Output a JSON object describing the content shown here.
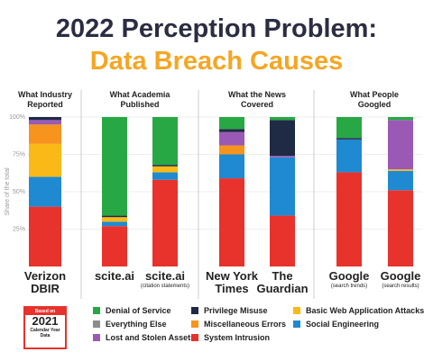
{
  "chart_data": {
    "type": "stacked_bar",
    "title": "2022 Perception Problem:",
    "subtitle": "Data Breach Causes",
    "ylabel": "Share of the total",
    "ylim": [
      0,
      100
    ],
    "yticks": [
      {
        "value": 25,
        "label": "25%"
      },
      {
        "value": 50,
        "label": "50%"
      },
      {
        "value": 75,
        "label": "75%"
      },
      {
        "value": 100,
        "label": "100%"
      }
    ],
    "grid": true,
    "groups": [
      {
        "name": "What Industry Reported",
        "categories": [
          {
            "label": "Verizon DBIR"
          }
        ]
      },
      {
        "name": "What Academia Published",
        "categories": [
          {
            "label": "scite.ai"
          },
          {
            "label": "scite.ai",
            "note": "(citation statements)"
          }
        ]
      },
      {
        "name": "What the News Covered",
        "categories": [
          {
            "label": "New York Times"
          },
          {
            "label": "The Guardian"
          }
        ]
      },
      {
        "name": "What People Googled",
        "categories": [
          {
            "label": "Google",
            "note": "(search trends)"
          },
          {
            "label": "Google",
            "note": "(search results)"
          }
        ]
      }
    ],
    "series": [
      {
        "name": "System Intrusion",
        "color": "#e8322c",
        "values": [
          40,
          27,
          58,
          59,
          34,
          63,
          51
        ]
      },
      {
        "name": "Social Engineering",
        "color": "#1f8ad1",
        "values": [
          20,
          3,
          5,
          16,
          39,
          22,
          13
        ]
      },
      {
        "name": "Basic Web Application Attacks",
        "color": "#fbb917",
        "values": [
          22,
          3,
          4,
          0,
          0,
          0,
          1
        ]
      },
      {
        "name": "Miscellaneous Errors",
        "color": "#f7941d",
        "values": [
          13,
          0,
          0,
          6,
          0,
          0,
          0
        ]
      },
      {
        "name": "Lost and Stolen Assets",
        "color": "#9b59b6",
        "values": [
          3,
          0,
          0,
          9,
          1,
          0,
          33
        ]
      },
      {
        "name": "Privilege Misuse",
        "color": "#1f2a44",
        "values": [
          2,
          1,
          1,
          2,
          24,
          1,
          0
        ]
      },
      {
        "name": "Everything Else",
        "color": "#8c8c8c",
        "values": [
          0,
          0,
          0,
          0,
          0,
          0,
          0
        ]
      },
      {
        "name": "Denial of Service",
        "color": "#27a844",
        "values": [
          0,
          66,
          32,
          8,
          2,
          14,
          2
        ]
      }
    ]
  },
  "badge": {
    "line1": "Based on",
    "year": "2021",
    "line2": "Calendar Year Data"
  }
}
